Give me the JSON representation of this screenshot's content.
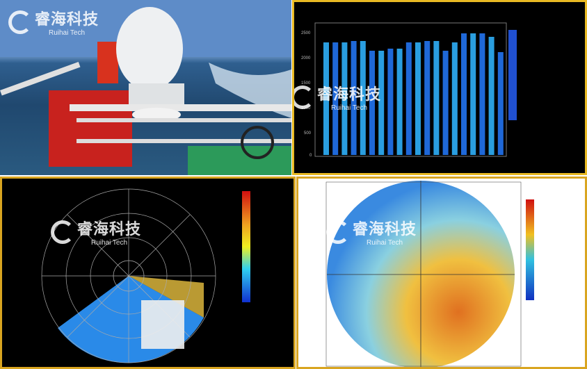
{
  "watermark": {
    "cn": "睿海科技",
    "en": "Ruihai Tech"
  },
  "height_chart": {
    "y_ticks": [
      "2500",
      "2000",
      "1500",
      "1000",
      "500",
      "0"
    ]
  },
  "colors": {
    "border": "#e8b923",
    "radar_blue": "#1e6fe0",
    "radar_orange": "#f0a030"
  }
}
